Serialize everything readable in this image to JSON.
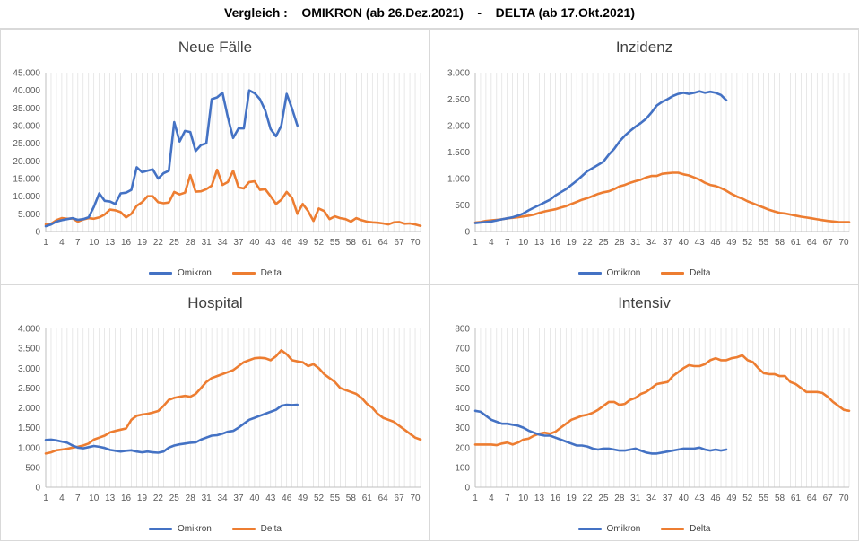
{
  "header": {
    "title": "Vergleich :    OMIKRON (ab 26.Dez.2021)    -    DELTA (ab 17.Okt.2021)"
  },
  "colors": {
    "omikron": "#4472c4",
    "delta": "#ed7d31",
    "grid": "#d9d9d9",
    "axis_text": "#595959"
  },
  "chart_data": [
    {
      "type": "line",
      "title": "Neue Fälle",
      "xlabel": "",
      "ylabel": "",
      "x_ticks": [
        "1",
        "4",
        "7",
        "10",
        "13",
        "16",
        "19",
        "22",
        "25",
        "28",
        "31",
        "34",
        "37",
        "40",
        "43",
        "46",
        "49",
        "52",
        "55",
        "58",
        "61",
        "64",
        "67",
        "70"
      ],
      "x_range": [
        1,
        71
      ],
      "ylim": [
        0,
        45000
      ],
      "y_ticks": [
        0,
        5000,
        10000,
        15000,
        20000,
        25000,
        30000,
        35000,
        40000,
        45000
      ],
      "y_tick_labels": [
        "0",
        "5.000",
        "10.000",
        "15.000",
        "20.000",
        "25.000",
        "30.000",
        "35.000",
        "40.000",
        "45.000"
      ],
      "grid": "vertical",
      "legend_position": "bottom",
      "series": [
        {
          "name": "Omikron",
          "color": "#4472c4",
          "values": [
            1500,
            2000,
            2800,
            3200,
            3500,
            3800,
            3300,
            3500,
            4000,
            7000,
            10800,
            8700,
            8500,
            7800,
            10800,
            11000,
            11800,
            18200,
            16800,
            17200,
            17600,
            15000,
            16500,
            17200,
            31000,
            25500,
            28500,
            28200,
            22800,
            24500,
            25000,
            37500,
            38000,
            39300,
            32500,
            26500,
            29200,
            29200,
            40000,
            39200,
            37500,
            34300,
            29000,
            27000,
            30000,
            39000,
            34800,
            30000
          ]
        },
        {
          "name": "Delta",
          "color": "#ed7d31",
          "values": [
            2000,
            2200,
            3200,
            3800,
            3600,
            3700,
            2800,
            3400,
            3800,
            3600,
            4000,
            4800,
            6200,
            6000,
            5500,
            4000,
            5000,
            7300,
            8300,
            10000,
            10000,
            8300,
            8000,
            8200,
            11200,
            10500,
            11000,
            16000,
            11300,
            11400,
            12000,
            13000,
            17500,
            13200,
            14000,
            17200,
            12500,
            12200,
            14000,
            14200,
            11800,
            12000,
            10000,
            7800,
            9000,
            11200,
            9500,
            5000,
            7800,
            5800,
            3000,
            6500,
            5800,
            3500,
            4300,
            3800,
            3500,
            2800,
            3800,
            3200,
            2800,
            2600,
            2500,
            2300,
            2000,
            2600,
            2700,
            2200,
            2300,
            2000,
            1600
          ]
        }
      ]
    },
    {
      "type": "line",
      "title": "Inzidenz",
      "xlabel": "",
      "ylabel": "",
      "x_ticks": [
        "1",
        "4",
        "7",
        "10",
        "13",
        "16",
        "19",
        "22",
        "25",
        "28",
        "31",
        "34",
        "37",
        "40",
        "43",
        "46",
        "49",
        "52",
        "55",
        "58",
        "61",
        "64",
        "67",
        "70"
      ],
      "x_range": [
        1,
        71
      ],
      "ylim": [
        0,
        3000
      ],
      "y_ticks": [
        0,
        500,
        1000,
        1500,
        2000,
        2500,
        3000
      ],
      "y_tick_labels": [
        "0",
        "500",
        "1.000",
        "1.500",
        "2.000",
        "2.500",
        "3.000"
      ],
      "grid": "vertical",
      "legend_position": "bottom",
      "series": [
        {
          "name": "Omikron",
          "color": "#4472c4",
          "values": [
            160,
            170,
            180,
            190,
            210,
            230,
            250,
            270,
            300,
            340,
            400,
            450,
            500,
            550,
            600,
            680,
            740,
            800,
            880,
            960,
            1050,
            1140,
            1200,
            1260,
            1320,
            1450,
            1560,
            1700,
            1810,
            1900,
            1980,
            2050,
            2130,
            2250,
            2380,
            2450,
            2500,
            2560,
            2600,
            2620,
            2600,
            2620,
            2650,
            2620,
            2640,
            2620,
            2580,
            2480
          ]
        },
        {
          "name": "Delta",
          "color": "#ed7d31",
          "values": [
            170,
            180,
            200,
            210,
            220,
            230,
            250,
            260,
            270,
            285,
            300,
            320,
            350,
            380,
            400,
            420,
            450,
            480,
            520,
            560,
            600,
            630,
            670,
            710,
            740,
            760,
            800,
            850,
            880,
            920,
            950,
            980,
            1020,
            1050,
            1050,
            1090,
            1100,
            1110,
            1110,
            1080,
            1060,
            1020,
            980,
            920,
            880,
            860,
            820,
            770,
            710,
            660,
            620,
            570,
            530,
            490,
            450,
            410,
            380,
            350,
            340,
            320,
            300,
            280,
            265,
            250,
            230,
            215,
            200,
            190,
            180,
            178,
            176
          ]
        }
      ]
    },
    {
      "type": "line",
      "title": "Hospital",
      "xlabel": "",
      "ylabel": "",
      "x_ticks": [
        "1",
        "4",
        "7",
        "10",
        "13",
        "16",
        "19",
        "22",
        "25",
        "28",
        "31",
        "34",
        "37",
        "40",
        "43",
        "46",
        "49",
        "52",
        "55",
        "58",
        "61",
        "64",
        "67",
        "70"
      ],
      "x_range": [
        1,
        71
      ],
      "ylim": [
        0,
        4000
      ],
      "y_ticks": [
        0,
        500,
        1000,
        1500,
        2000,
        2500,
        3000,
        3500,
        4000
      ],
      "y_tick_labels": [
        "0",
        "500",
        "1.000",
        "1.500",
        "2.000",
        "2.500",
        "3.000",
        "3.500",
        "4.000"
      ],
      "grid": "vertical",
      "legend_position": "bottom",
      "series": [
        {
          "name": "Omikron",
          "color": "#4472c4",
          "values": [
            1190,
            1200,
            1180,
            1150,
            1120,
            1050,
            1000,
            980,
            1010,
            1040,
            1020,
            990,
            940,
            920,
            900,
            920,
            930,
            900,
            880,
            900,
            880,
            870,
            900,
            1000,
            1050,
            1080,
            1100,
            1120,
            1130,
            1200,
            1250,
            1300,
            1310,
            1350,
            1400,
            1420,
            1500,
            1600,
            1700,
            1750,
            1800,
            1850,
            1900,
            1950,
            2050,
            2080,
            2070,
            2080
          ]
        },
        {
          "name": "Delta",
          "color": "#ed7d31",
          "values": [
            850,
            880,
            930,
            950,
            970,
            1000,
            1020,
            1050,
            1100,
            1200,
            1250,
            1300,
            1380,
            1420,
            1450,
            1480,
            1700,
            1800,
            1830,
            1850,
            1880,
            1920,
            2050,
            2200,
            2250,
            2280,
            2300,
            2280,
            2350,
            2500,
            2650,
            2750,
            2800,
            2850,
            2900,
            2950,
            3050,
            3150,
            3200,
            3250,
            3260,
            3250,
            3200,
            3300,
            3450,
            3350,
            3200,
            3170,
            3150,
            3050,
            3100,
            3000,
            2850,
            2750,
            2650,
            2500,
            2450,
            2400,
            2350,
            2250,
            2100,
            2000,
            1850,
            1750,
            1700,
            1650,
            1550,
            1450,
            1350,
            1250,
            1200
          ]
        }
      ]
    },
    {
      "type": "line",
      "title": "Intensiv",
      "xlabel": "",
      "ylabel": "",
      "x_ticks": [
        "1",
        "4",
        "7",
        "10",
        "13",
        "16",
        "19",
        "22",
        "25",
        "28",
        "31",
        "34",
        "37",
        "40",
        "43",
        "46",
        "49",
        "52",
        "55",
        "58",
        "61",
        "64",
        "67",
        "70"
      ],
      "x_range": [
        1,
        71
      ],
      "ylim": [
        0,
        800
      ],
      "y_ticks": [
        0,
        100,
        200,
        300,
        400,
        500,
        600,
        700,
        800
      ],
      "y_tick_labels": [
        "0",
        "100",
        "200",
        "300",
        "400",
        "500",
        "600",
        "700",
        "800"
      ],
      "grid": "vertical",
      "legend_position": "bottom",
      "series": [
        {
          "name": "Omikron",
          "color": "#4472c4",
          "values": [
            385,
            380,
            360,
            340,
            330,
            320,
            320,
            315,
            310,
            300,
            285,
            275,
            265,
            260,
            260,
            250,
            240,
            230,
            220,
            210,
            210,
            205,
            195,
            190,
            195,
            195,
            190,
            185,
            185,
            190,
            195,
            185,
            175,
            170,
            170,
            175,
            180,
            185,
            190,
            195,
            195,
            195,
            200,
            190,
            185,
            190,
            185,
            190
          ]
        },
        {
          "name": "Delta",
          "color": "#ed7d31",
          "values": [
            215,
            215,
            215,
            215,
            212,
            220,
            225,
            215,
            225,
            240,
            245,
            260,
            270,
            275,
            270,
            280,
            300,
            320,
            340,
            350,
            360,
            365,
            375,
            390,
            410,
            430,
            430,
            415,
            420,
            440,
            450,
            470,
            480,
            500,
            520,
            525,
            530,
            560,
            580,
            600,
            615,
            610,
            610,
            620,
            640,
            650,
            640,
            640,
            650,
            655,
            665,
            640,
            630,
            600,
            575,
            570,
            570,
            560,
            560,
            530,
            520,
            500,
            480,
            480,
            480,
            475,
            455,
            430,
            410,
            390,
            385
          ]
        }
      ]
    }
  ]
}
